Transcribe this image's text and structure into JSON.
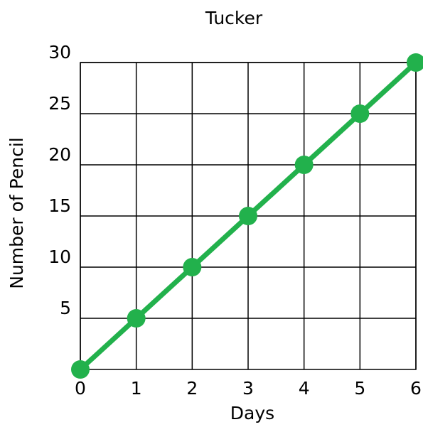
{
  "chart_data": {
    "type": "line",
    "title": "Tucker",
    "x_label": "Days",
    "y_label": "Number of Pencil",
    "x": [
      0,
      1,
      2,
      3,
      4,
      5,
      6
    ],
    "series": [
      {
        "name": "Tucker",
        "color": "#22b14c",
        "values": [
          0,
          5,
          10,
          15,
          20,
          25,
          30
        ]
      }
    ],
    "xlim": [
      0,
      6
    ],
    "xticks": [
      0,
      1,
      2,
      3,
      4,
      5,
      6
    ],
    "ylim": [
      0,
      30
    ],
    "yticks": [
      5,
      10,
      15,
      20,
      25,
      30
    ],
    "grid": true
  }
}
